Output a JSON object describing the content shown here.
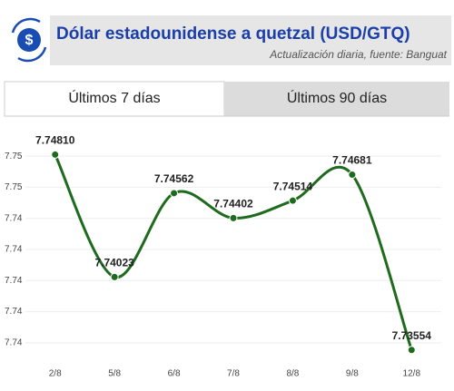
{
  "header": {
    "title": "Dólar estadounidense a quetzal (USD/GTQ)",
    "subtitle": "Actualización diaria, fuente: Banguat"
  },
  "tabs": [
    "Últimos 7 días",
    "Últimos 90 días"
  ],
  "chart_data": {
    "type": "line",
    "categories": [
      "2/8",
      "5/8",
      "6/8",
      "7/8",
      "8/8",
      "9/8",
      "12/8"
    ],
    "values": [
      7.7481,
      7.74023,
      7.74562,
      7.74402,
      7.74514,
      7.74681,
      7.73554
    ],
    "value_labels": [
      "7.74810",
      "7.74023",
      "7.74562",
      "7.74402",
      "7.74514",
      "7.74681",
      "7.73554"
    ],
    "color": "#1e6b1e",
    "ylim": [
      7.735,
      7.749
    ],
    "yticks": [
      {
        "value": 7.736,
        "label": "7.74"
      },
      {
        "value": 7.738,
        "label": "7.74"
      },
      {
        "value": 7.74,
        "label": "7.74"
      },
      {
        "value": 7.742,
        "label": "7.74"
      },
      {
        "value": 7.744,
        "label": "7.74"
      },
      {
        "value": 7.746,
        "label": "7.75"
      },
      {
        "value": 7.748,
        "label": "7.75"
      }
    ],
    "grid": true
  }
}
